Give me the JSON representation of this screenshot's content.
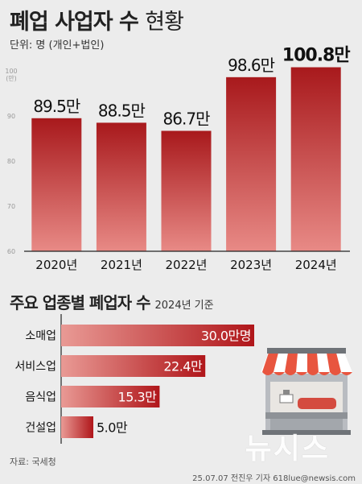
{
  "header": {
    "title_bold": "폐업 사업자 수",
    "title_light": "현황",
    "unit": "단위: 명 (개인+법인)"
  },
  "colors": {
    "bar_top": "#a8191c",
    "bar_bottom": "#e88a86",
    "hbar_start": "#e99a95",
    "hbar_end": "#b0161a",
    "background": "#ececec"
  },
  "chart_data": [
    {
      "type": "bar",
      "categories": [
        "2020년",
        "2021년",
        "2022년",
        "2023년",
        "2024년"
      ],
      "values": [
        89.5,
        88.5,
        86.7,
        98.6,
        100.8
      ],
      "value_labels": [
        "89.5만",
        "88.5만",
        "86.7만",
        "98.6만",
        "100.8만"
      ],
      "ylim": [
        60,
        100
      ],
      "yticks": [
        "60",
        "70",
        "80",
        "90",
        "100"
      ],
      "ytick_unit": "(만)",
      "grid": false
    },
    {
      "type": "bar",
      "orientation": "horizontal",
      "title": "주요 업종별 폐업자 수",
      "basis": "2024년 기준",
      "categories": [
        "소매업",
        "서비스업",
        "음식업",
        "건설업"
      ],
      "values": [
        30.0,
        22.4,
        15.3,
        5.0
      ],
      "value_labels": [
        "30.0만명",
        "22.4만",
        "15.3만",
        "5.0만"
      ],
      "xlim": [
        0,
        30
      ]
    }
  ],
  "footer": {
    "source": "자료: 국세청",
    "credit": "25.07.07 전진우 기자 618lue@newsis.com",
    "logo": "뉴시스"
  }
}
